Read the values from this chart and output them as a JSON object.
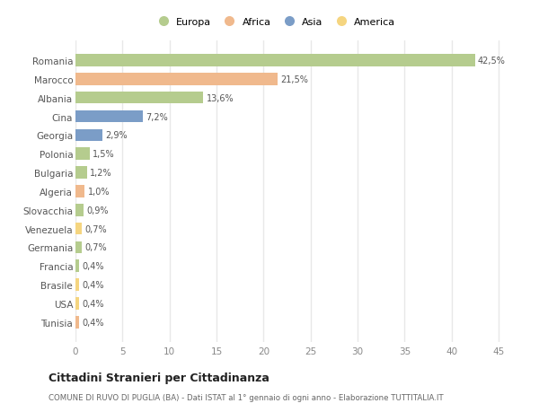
{
  "countries": [
    "Romania",
    "Marocco",
    "Albania",
    "Cina",
    "Georgia",
    "Polonia",
    "Bulgaria",
    "Algeria",
    "Slovacchia",
    "Venezuela",
    "Germania",
    "Francia",
    "Brasile",
    "USA",
    "Tunisia"
  ],
  "values": [
    42.5,
    21.5,
    13.6,
    7.2,
    2.9,
    1.5,
    1.2,
    1.0,
    0.9,
    0.7,
    0.7,
    0.4,
    0.4,
    0.4,
    0.4
  ],
  "labels": [
    "42,5%",
    "21,5%",
    "13,6%",
    "7,2%",
    "2,9%",
    "1,5%",
    "1,2%",
    "1,0%",
    "0,9%",
    "0,7%",
    "0,7%",
    "0,4%",
    "0,4%",
    "0,4%",
    "0,4%"
  ],
  "colors": [
    "#b5cc8e",
    "#f0b98d",
    "#b5cc8e",
    "#7b9dc7",
    "#7b9dc7",
    "#b5cc8e",
    "#b5cc8e",
    "#f0b98d",
    "#b5cc8e",
    "#f5d580",
    "#b5cc8e",
    "#b5cc8e",
    "#f5d580",
    "#f5d580",
    "#f0b98d"
  ],
  "legend_labels": [
    "Europa",
    "Africa",
    "Asia",
    "America"
  ],
  "legend_colors": [
    "#b5cc8e",
    "#f0b98d",
    "#7b9dc7",
    "#f5d580"
  ],
  "title": "Cittadini Stranieri per Cittadinanza",
  "subtitle": "COMUNE DI RUVO DI PUGLIA (BA) - Dati ISTAT al 1° gennaio di ogni anno - Elaborazione TUTTITALIA.IT",
  "xlim": [
    0,
    47
  ],
  "xticks": [
    0,
    5,
    10,
    15,
    20,
    25,
    30,
    35,
    40,
    45
  ],
  "plot_bg_color": "#ffffff",
  "fig_bg_color": "#ffffff",
  "grid_color": "#e8e8e8"
}
